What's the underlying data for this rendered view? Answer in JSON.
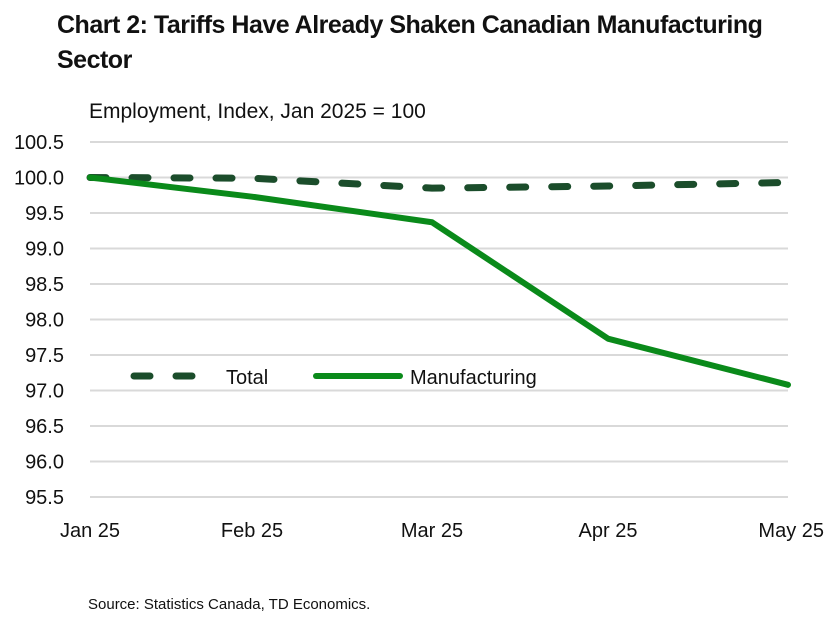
{
  "chart_data": {
    "type": "line",
    "title": "Chart 2: Tariffs Have Already Shaken Canadian Manufacturing Sector",
    "subtitle": "Employment, Index, Jan 2025 = 100",
    "xlabel": "",
    "ylabel": "Employment, Index, Jan 2025 = 100",
    "categories": [
      "Jan 25",
      "Feb 25",
      "Mar 25",
      "Apr 25",
      "May 25"
    ],
    "ylim": [
      95.5,
      100.5
    ],
    "yticks": [
      "100.5",
      "100.0",
      "99.5",
      "99.0",
      "98.5",
      "98.0",
      "97.5",
      "97.0",
      "96.5",
      "96.0",
      "95.5"
    ],
    "ytick_values": [
      100.5,
      100.0,
      99.5,
      99.0,
      98.5,
      98.0,
      97.5,
      97.0,
      96.5,
      96.0,
      95.5
    ],
    "grid": true,
    "legend_position": "inside-bottom-left",
    "series": [
      {
        "name": "Total",
        "style": "dashed",
        "color": "#1b4d2b",
        "values": [
          100.0,
          99.99,
          99.85,
          99.88,
          99.93
        ]
      },
      {
        "name": "Manufacturing",
        "style": "solid",
        "color": "#0a8a1a",
        "values": [
          100.0,
          99.73,
          99.37,
          97.73,
          97.08
        ]
      }
    ],
    "source": "Source: Statistics Canada, TD Economics."
  }
}
